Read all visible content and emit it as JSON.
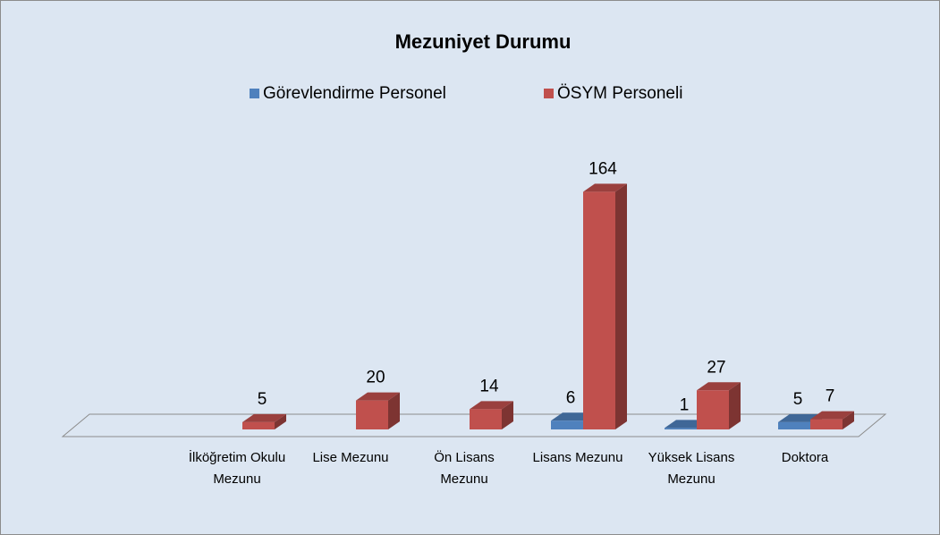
{
  "chart_data": {
    "type": "bar3d",
    "title": "Mezuniyet Durumu",
    "categories": [
      null,
      "İlköğretim Okulu Mezunu",
      "Lise Mezunu",
      "Ön Lisans Mezunu",
      "Lisans Mezunu",
      "Yüksek Lisans Mezunu",
      "Doktora"
    ],
    "series": [
      {
        "name": "Görevlendirme Personel",
        "color": "#4f81bd",
        "values": [
          null,
          null,
          null,
          null,
          6,
          1,
          5
        ]
      },
      {
        "name": "ÖSYM Personeli",
        "color": "#c0504d",
        "values": [
          null,
          5,
          20,
          14,
          164,
          27,
          7
        ]
      }
    ],
    "legend": "top"
  }
}
